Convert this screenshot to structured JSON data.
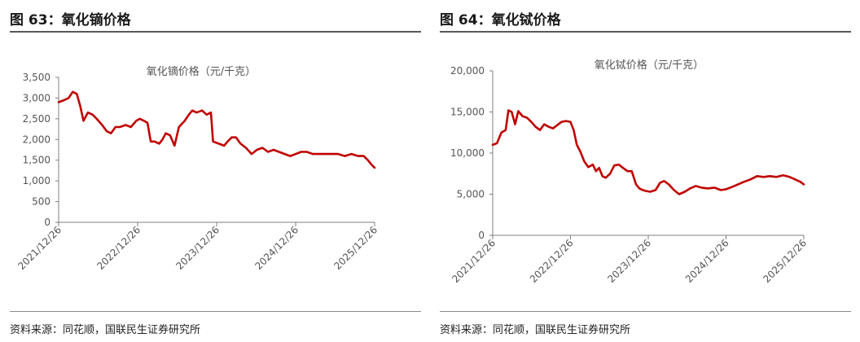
{
  "panels": [
    {
      "figure_title": "图 63：氧化镝价格",
      "source": "资料来源：同花顺，国联民生证券研究所",
      "chart_data": {
        "type": "line",
        "title": "氧化镝价格（元/千克）",
        "y_ticks": [
          "3,500",
          "3,000",
          "2,500",
          "2,000",
          "1,500",
          "1,000",
          "500",
          "0"
        ],
        "x_ticks": [
          "2021/12/26",
          "2022/12/26",
          "2023/12/26",
          "2024/12/26",
          "2025/12/26"
        ],
        "ylim": [
          0,
          3500
        ],
        "xlim": [
          "2021-12-26",
          "2025-12-26"
        ],
        "grid": false,
        "line_color": "#c00000",
        "series": [
          {
            "x": [
              "2021-12-26",
              "2022-01-20",
              "2022-02-10",
              "2022-03-01",
              "2022-03-20",
              "2022-04-05",
              "2022-04-20",
              "2022-05-10",
              "2022-06-01",
              "2022-06-20",
              "2022-07-15",
              "2022-08-05",
              "2022-08-25",
              "2022-09-15",
              "2022-10-05",
              "2022-11-01",
              "2022-11-25",
              "2022-12-20",
              "2023-01-05",
              "2023-01-25",
              "2023-02-10",
              "2023-02-25",
              "2023-03-15",
              "2023-04-05",
              "2023-04-20",
              "2023-05-05",
              "2023-05-25",
              "2023-06-15",
              "2023-07-05",
              "2023-08-01",
              "2023-08-20",
              "2023-09-05",
              "2023-09-25",
              "2023-10-20",
              "2023-11-10",
              "2023-11-30",
              "2023-12-10",
              "2024-01-05",
              "2024-01-30",
              "2024-02-15",
              "2024-03-05",
              "2024-03-25",
              "2024-04-15",
              "2024-05-10",
              "2024-06-05",
              "2024-06-30",
              "2024-07-25",
              "2024-08-20",
              "2024-09-15",
              "2024-10-10",
              "2024-11-05",
              "2024-12-01",
              "2024-12-26",
              "2025-01-20",
              "2025-02-15",
              "2025-03-15",
              "2025-04-10",
              "2025-05-10",
              "2025-06-10",
              "2025-07-10",
              "2025-08-10",
              "2025-09-10",
              "2025-10-10",
              "2025-11-05",
              "2025-11-25",
              "2025-12-10",
              "2025-12-26"
            ],
            "values": [
              2900,
              2950,
              3000,
              3150,
              3100,
              2800,
              2450,
              2650,
              2600,
              2500,
              2350,
              2200,
              2150,
              2300,
              2300,
              2350,
              2300,
              2450,
              2500,
              2450,
              2400,
              1950,
              1950,
              1900,
              2000,
              2150,
              2100,
              1850,
              2300,
              2450,
              2600,
              2700,
              2650,
              2700,
              2600,
              2650,
              1950,
              1900,
              1850,
              1950,
              2050,
              2050,
              1900,
              1800,
              1650,
              1750,
              1800,
              1700,
              1750,
              1700,
              1650,
              1600,
              1650,
              1700,
              1700,
              1650,
              1650,
              1650,
              1650,
              1650,
              1600,
              1650,
              1600,
              1600,
              1500,
              1400,
              1320
            ]
          }
        ]
      }
    },
    {
      "figure_title": "图 64：氧化铽价格",
      "source": "资料来源：同花顺，国联民生证券研究所",
      "chart_data": {
        "type": "line",
        "title": "氧化铽价格（元/千克）",
        "y_ticks": [
          "20,000",
          "15,000",
          "10,000",
          "5,000",
          "0"
        ],
        "x_ticks": [
          "2021/12/26",
          "2022/12/26",
          "2023/12/26",
          "2024/12/26",
          "2025/12/26"
        ],
        "ylim": [
          0,
          20000
        ],
        "xlim": [
          "2021-12-26",
          "2025-12-26"
        ],
        "grid": false,
        "line_color": "#c00000",
        "series": [
          {
            "x": [
              "2021-12-26",
              "2022-01-15",
              "2022-02-05",
              "2022-02-25",
              "2022-03-10",
              "2022-03-25",
              "2022-04-10",
              "2022-04-25",
              "2022-05-15",
              "2022-06-05",
              "2022-06-25",
              "2022-07-15",
              "2022-08-05",
              "2022-08-25",
              "2022-09-15",
              "2022-10-05",
              "2022-10-25",
              "2022-11-15",
              "2022-12-05",
              "2022-12-26",
              "2023-01-10",
              "2023-01-25",
              "2023-02-10",
              "2023-03-01",
              "2023-03-20",
              "2023-04-10",
              "2023-04-25",
              "2023-05-10",
              "2023-05-25",
              "2023-06-10",
              "2023-06-30",
              "2023-07-20",
              "2023-08-10",
              "2023-08-30",
              "2023-09-20",
              "2023-10-10",
              "2023-10-30",
              "2023-11-15",
              "2023-12-01",
              "2023-12-15",
              "2024-01-05",
              "2024-01-30",
              "2024-02-20",
              "2024-03-10",
              "2024-04-01",
              "2024-04-25",
              "2024-05-20",
              "2024-06-15",
              "2024-07-10",
              "2024-08-05",
              "2024-09-01",
              "2024-10-01",
              "2024-11-01",
              "2024-12-01",
              "2024-12-26",
              "2025-01-25",
              "2025-02-20",
              "2025-03-20",
              "2025-04-20",
              "2025-05-20",
              "2025-06-20",
              "2025-07-20",
              "2025-08-20",
              "2025-09-20",
              "2025-10-20",
              "2025-11-15",
              "2025-12-10",
              "2025-12-26"
            ],
            "values": [
              11000,
              11200,
              12500,
              12800,
              15200,
              15000,
              13500,
              15100,
              14500,
              14300,
              13800,
              13200,
              12800,
              13500,
              13200,
              13000,
              13400,
              13800,
              13900,
              13800,
              12800,
              11000,
              10200,
              9000,
              8300,
              8600,
              7800,
              8200,
              7200,
              7000,
              7500,
              8500,
              8600,
              8200,
              7800,
              7800,
              6200,
              5700,
              5500,
              5400,
              5300,
              5500,
              6400,
              6600,
              6200,
              5500,
              5000,
              5300,
              5700,
              6000,
              5800,
              5700,
              5800,
              5500,
              5600,
              5900,
              6200,
              6500,
              6800,
              7200,
              7100,
              7200,
              7100,
              7300,
              7100,
              6800,
              6500,
              6200
            ]
          }
        ]
      }
    }
  ]
}
